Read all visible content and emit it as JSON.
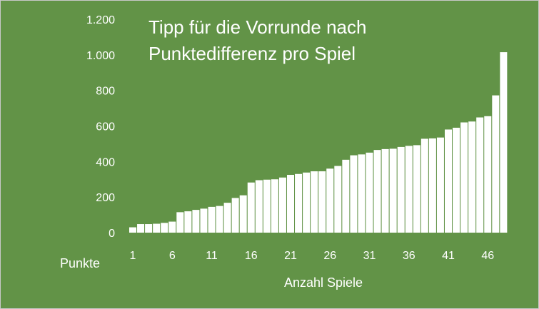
{
  "chart_data": {
    "type": "bar",
    "title_lines": [
      "Tipp für die Vorrunde nach",
      "Punktedifferenz pro Spiel"
    ],
    "xlabel": "Anzahl Spiele",
    "ylabel": "Punkte",
    "ylim": [
      0,
      1200
    ],
    "yticks": [
      0,
      200,
      400,
      600,
      800,
      1000,
      1200
    ],
    "ytick_labels": [
      "0",
      "200",
      "400",
      "600",
      "800",
      "1.000",
      "1.200"
    ],
    "xtick_labels": [
      "1",
      "6",
      "11",
      "16",
      "21",
      "26",
      "31",
      "36",
      "41",
      "46"
    ],
    "xtick_positions": [
      1,
      6,
      11,
      16,
      21,
      26,
      31,
      36,
      41,
      46
    ],
    "grid": false,
    "legend": "none",
    "colors": {
      "background": "#629347",
      "bar": "#ffffff",
      "text": "#ffffff"
    },
    "x": [
      1,
      2,
      3,
      4,
      5,
      6,
      7,
      8,
      9,
      10,
      11,
      12,
      13,
      14,
      15,
      16,
      17,
      18,
      19,
      20,
      21,
      22,
      23,
      24,
      25,
      26,
      27,
      28,
      29,
      30,
      31,
      32,
      33,
      34,
      35,
      36,
      37,
      38,
      39,
      40,
      41,
      42,
      43,
      44,
      45,
      46,
      47,
      48
    ],
    "values": [
      30,
      48,
      48,
      50,
      55,
      62,
      115,
      120,
      128,
      135,
      145,
      150,
      168,
      195,
      210,
      282,
      295,
      298,
      300,
      310,
      325,
      330,
      338,
      345,
      345,
      360,
      375,
      410,
      435,
      440,
      450,
      465,
      470,
      472,
      482,
      488,
      492,
      528,
      530,
      535,
      580,
      590,
      620,
      625,
      648,
      655,
      772,
      1015
    ]
  }
}
